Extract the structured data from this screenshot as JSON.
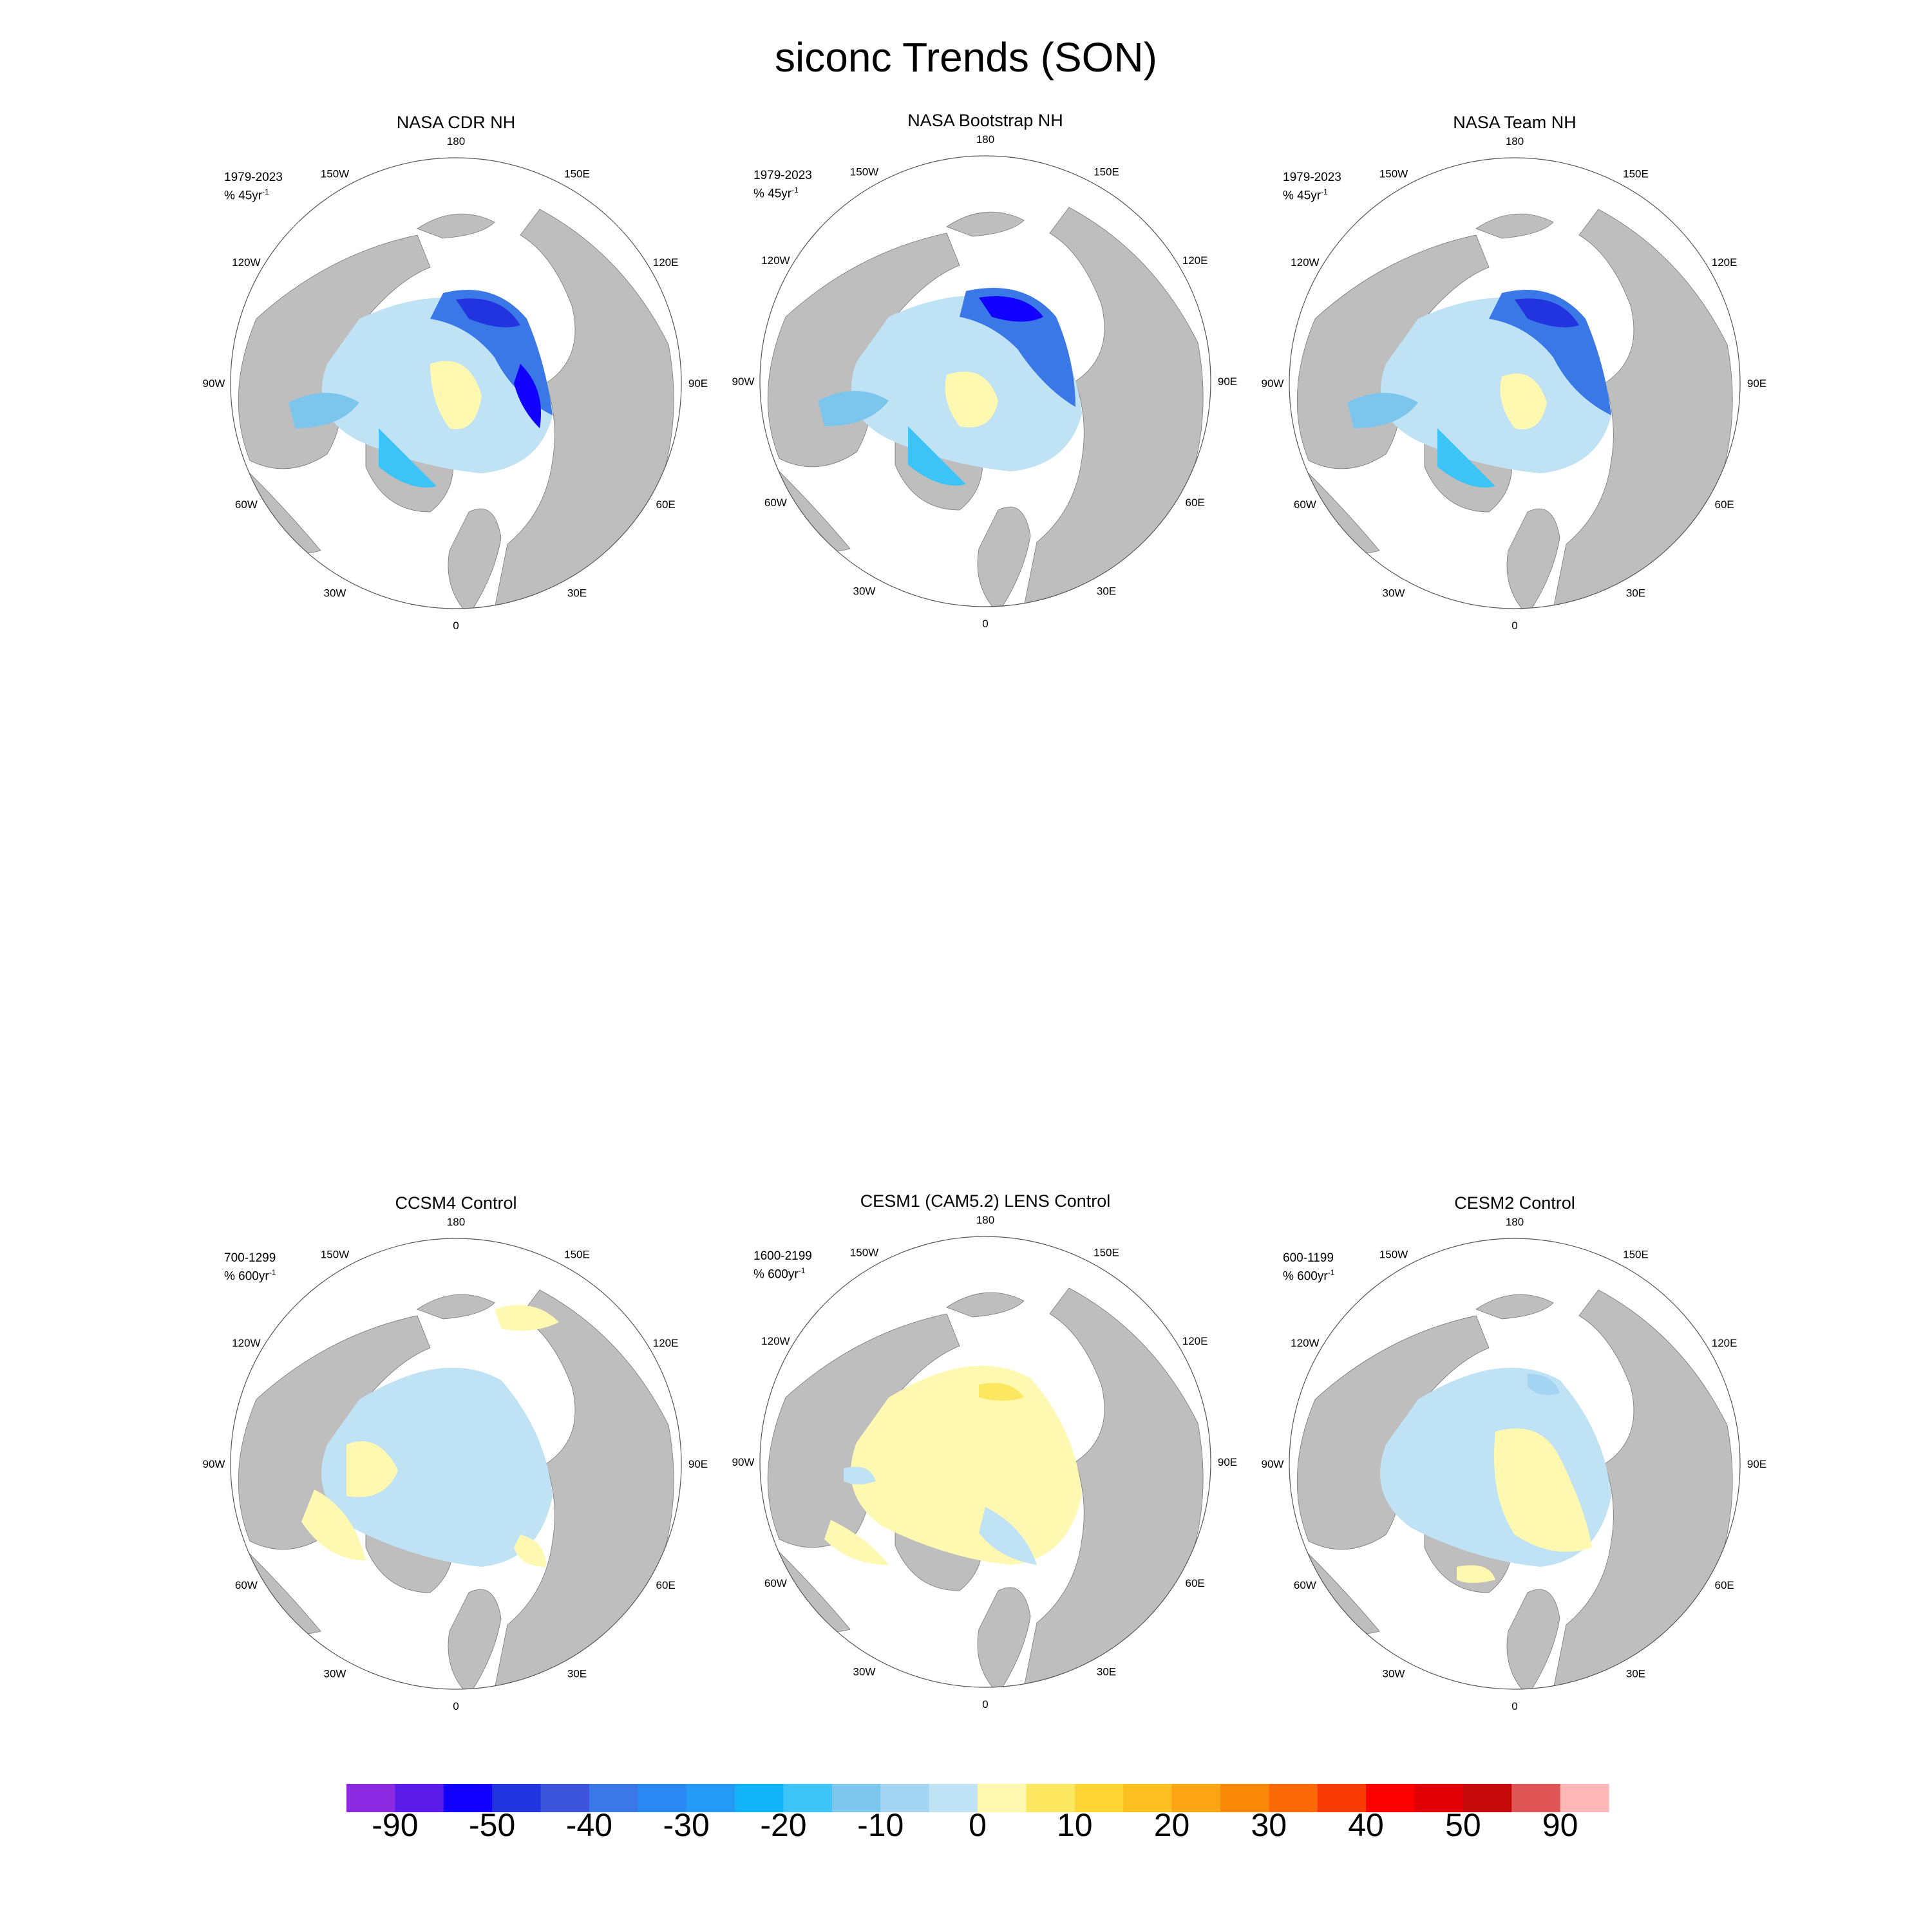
{
  "title": "siconc Trends (SON)",
  "panels": [
    {
      "title": "NASA CDR NH",
      "period": "1979-2023",
      "units_prefix": "% 45yr",
      "units_exp": "-1",
      "pattern": "obs1"
    },
    {
      "title": "NASA Bootstrap NH",
      "period": "1979-2023",
      "units_prefix": "% 45yr",
      "units_exp": "-1",
      "pattern": "obs2"
    },
    {
      "title": "NASA Team NH",
      "period": "1979-2023",
      "units_prefix": "% 45yr",
      "units_exp": "-1",
      "pattern": "obs3"
    },
    {
      "title": "CCSM4 Control",
      "period": "700-1299",
      "units_prefix": "% 600yr",
      "units_exp": "-1",
      "pattern": "ccsm4"
    },
    {
      "title": "CESM1 (CAM5.2) LENS Control",
      "period": "1600-2199",
      "units_prefix": "% 600yr",
      "units_exp": "-1",
      "pattern": "cesm1"
    },
    {
      "title": "CESM2 Control",
      "period": "600-1199",
      "units_prefix": "% 600yr",
      "units_exp": "-1",
      "pattern": "cesm2"
    }
  ],
  "longitude_labels": [
    "180",
    "150E",
    "120E",
    "90E",
    "60E",
    "30E",
    "0",
    "30W",
    "60W",
    "90W",
    "120W",
    "150W"
  ],
  "colorbar": {
    "colors": [
      "#8a2be2",
      "#5a1ae8",
      "#1100ff",
      "#2233e0",
      "#3d55db",
      "#3a78e8",
      "#2a88f5",
      "#229bf5",
      "#12b4f9",
      "#3cc4f7",
      "#7cc6ee",
      "#a3d4f1",
      "#c0e2f5",
      "#fff8b0",
      "#fce860",
      "#fcd535",
      "#fbbf20",
      "#fba515",
      "#fb8a0a",
      "#fb6a06",
      "#fb3b05",
      "#fd0000",
      "#e00005",
      "#c60a0a",
      "#e05555",
      "#ffb6b6"
    ],
    "labels": [
      "-90",
      "-50",
      "-40",
      "-30",
      "-20",
      "-10",
      "0",
      "10",
      "20",
      "30",
      "40",
      "50",
      "90"
    ],
    "label_bins": [
      1,
      3,
      5,
      7,
      9,
      11,
      13,
      15,
      17,
      19,
      21,
      23,
      25
    ]
  },
  "colors": {
    "land": "#bebebe",
    "ocean": "#ffffff",
    "outline": "#555555"
  }
}
